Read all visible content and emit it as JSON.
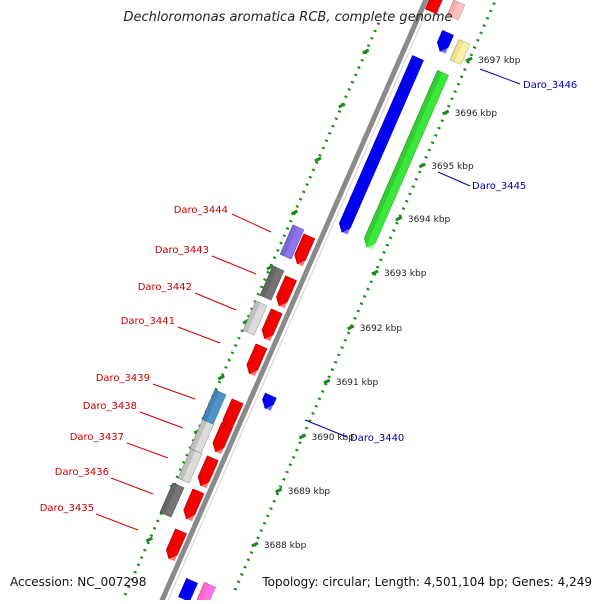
{
  "title": "Dechloromonas aromatica RCB, complete genome",
  "footer": {
    "accession": "Accession: NC_007298",
    "topology": "Topology: circular; Length: 4,501,104 bp; Genes: 4,249"
  },
  "ticks": [
    {
      "label": "3688 kbp"
    },
    {
      "label": "3689 kbp"
    },
    {
      "label": "3690 kbp"
    },
    {
      "label": "3691 kbp"
    },
    {
      "label": "3692 kbp"
    },
    {
      "label": "3693 kbp"
    },
    {
      "label": "3694 kbp"
    },
    {
      "label": "3695 kbp"
    },
    {
      "label": "3696 kbp"
    },
    {
      "label": "3697 kbp"
    }
  ],
  "genes": [
    {
      "label": "Daro_3446",
      "strand": "forward",
      "color": "#0000aa"
    },
    {
      "label": "Daro_3445",
      "strand": "forward",
      "color": "#0000aa"
    },
    {
      "label": "Daro_3444",
      "strand": "reverse",
      "color": "#cc0000"
    },
    {
      "label": "Daro_3443",
      "strand": "reverse",
      "color": "#cc0000"
    },
    {
      "label": "Daro_3442",
      "strand": "reverse",
      "color": "#cc0000"
    },
    {
      "label": "Daro_3441",
      "strand": "reverse",
      "color": "#cc0000"
    },
    {
      "label": "Daro_3440",
      "strand": "forward",
      "color": "#0000aa"
    },
    {
      "label": "Daro_3439",
      "strand": "reverse",
      "color": "#cc0000"
    },
    {
      "label": "Daro_3438",
      "strand": "reverse",
      "color": "#cc0000"
    },
    {
      "label": "Daro_3437",
      "strand": "reverse",
      "color": "#cc0000"
    },
    {
      "label": "Daro_3436",
      "strand": "reverse",
      "color": "#cc0000"
    },
    {
      "label": "Daro_3435",
      "strand": "reverse",
      "color": "#cc0000"
    }
  ],
  "colors": {
    "backbone": "#8a8a8a",
    "tick": "#1a8a1a",
    "cds_forward": "#0000ee",
    "cds_reverse": "#ee0000",
    "feature_green": "#33cc33",
    "feature_purple": "#7b68d8",
    "feature_darkgray": "#666666",
    "feature_lightgray": "#c0c0c0",
    "feature_steelblue": "#4682b4",
    "feature_yellow": "#f0e090",
    "feature_pink": "#ff66cc"
  }
}
